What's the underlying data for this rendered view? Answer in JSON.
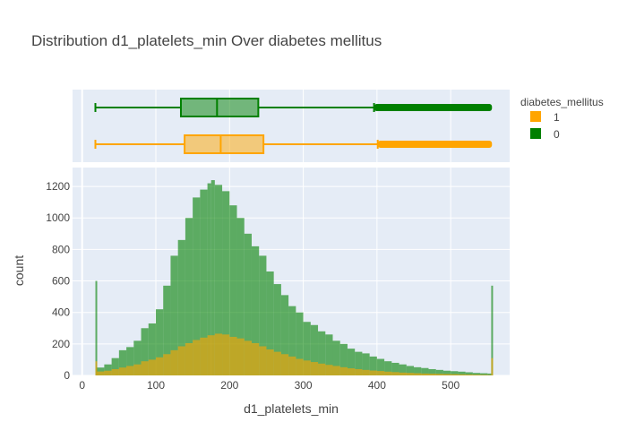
{
  "chart_data": {
    "type": "bar",
    "title": "Distribution d1_platelets_min Over diabetes mellitus",
    "xlabel": "d1_platelets_min",
    "ylabel": "count",
    "xlim": [
      -13,
      580
    ],
    "ylim": [
      0,
      1320
    ],
    "x_ticks": [
      0,
      100,
      200,
      300,
      400,
      500
    ],
    "y_ticks": [
      0,
      200,
      400,
      600,
      800,
      1000,
      1200
    ],
    "barmode": "overlay",
    "legend": {
      "title": "diabetes_mellitus",
      "placement": "right",
      "items": [
        {
          "label": "1",
          "color": "#FFA500"
        },
        {
          "label": "0",
          "color": "#008000"
        }
      ]
    },
    "background": "#E5ECF6",
    "series": [
      {
        "name": "0",
        "color": "#008000",
        "x": [
          18,
          20,
          30,
          40,
          50,
          60,
          70,
          80,
          90,
          100,
          110,
          120,
          130,
          140,
          150,
          160,
          170,
          175,
          180,
          190,
          200,
          210,
          220,
          230,
          240,
          250,
          260,
          270,
          280,
          290,
          300,
          310,
          320,
          330,
          340,
          350,
          360,
          370,
          380,
          390,
          400,
          410,
          420,
          430,
          440,
          450,
          460,
          470,
          480,
          490,
          500,
          510,
          520,
          530,
          540,
          550,
          555
        ],
        "values": [
          600,
          50,
          70,
          110,
          160,
          180,
          220,
          300,
          330,
          420,
          570,
          760,
          860,
          1000,
          1130,
          1180,
          1220,
          1240,
          1210,
          1170,
          1080,
          1000,
          900,
          820,
          760,
          660,
          580,
          510,
          440,
          400,
          340,
          320,
          280,
          260,
          220,
          200,
          170,
          150,
          140,
          120,
          105,
          90,
          80,
          70,
          60,
          52,
          47,
          40,
          35,
          30,
          27,
          24,
          20,
          16,
          14,
          12,
          570
        ]
      },
      {
        "name": "1",
        "color": "#FFA500",
        "x": [
          18,
          20,
          30,
          40,
          50,
          60,
          70,
          80,
          90,
          100,
          110,
          120,
          130,
          140,
          150,
          160,
          170,
          180,
          190,
          200,
          210,
          220,
          230,
          240,
          250,
          260,
          270,
          280,
          290,
          300,
          310,
          320,
          330,
          340,
          350,
          360,
          370,
          380,
          390,
          400,
          410,
          420,
          430,
          440,
          450,
          460,
          470,
          480,
          490,
          500,
          510,
          520,
          530,
          540,
          550,
          555
        ],
        "values": [
          90,
          25,
          30,
          40,
          50,
          60,
          70,
          90,
          100,
          115,
          135,
          160,
          185,
          205,
          225,
          240,
          255,
          265,
          260,
          245,
          235,
          220,
          205,
          185,
          165,
          150,
          135,
          120,
          105,
          95,
          85,
          75,
          67,
          60,
          52,
          45,
          40,
          35,
          31,
          28,
          24,
          21,
          18,
          16,
          14,
          12,
          11,
          10,
          9,
          8,
          7,
          6,
          5,
          4,
          3,
          110
        ]
      }
    ],
    "box_data": [
      {
        "name": "0",
        "color": "#008000",
        "min": 18,
        "q1": 134,
        "median": 183,
        "q3": 239,
        "upper_fence": 396,
        "outliers_range": [
          396,
          556
        ]
      },
      {
        "name": "1",
        "color": "#FFA500",
        "min": 18,
        "q1": 139,
        "median": 188,
        "q3": 246,
        "upper_fence": 401,
        "outliers_range": [
          401,
          556
        ]
      }
    ]
  }
}
